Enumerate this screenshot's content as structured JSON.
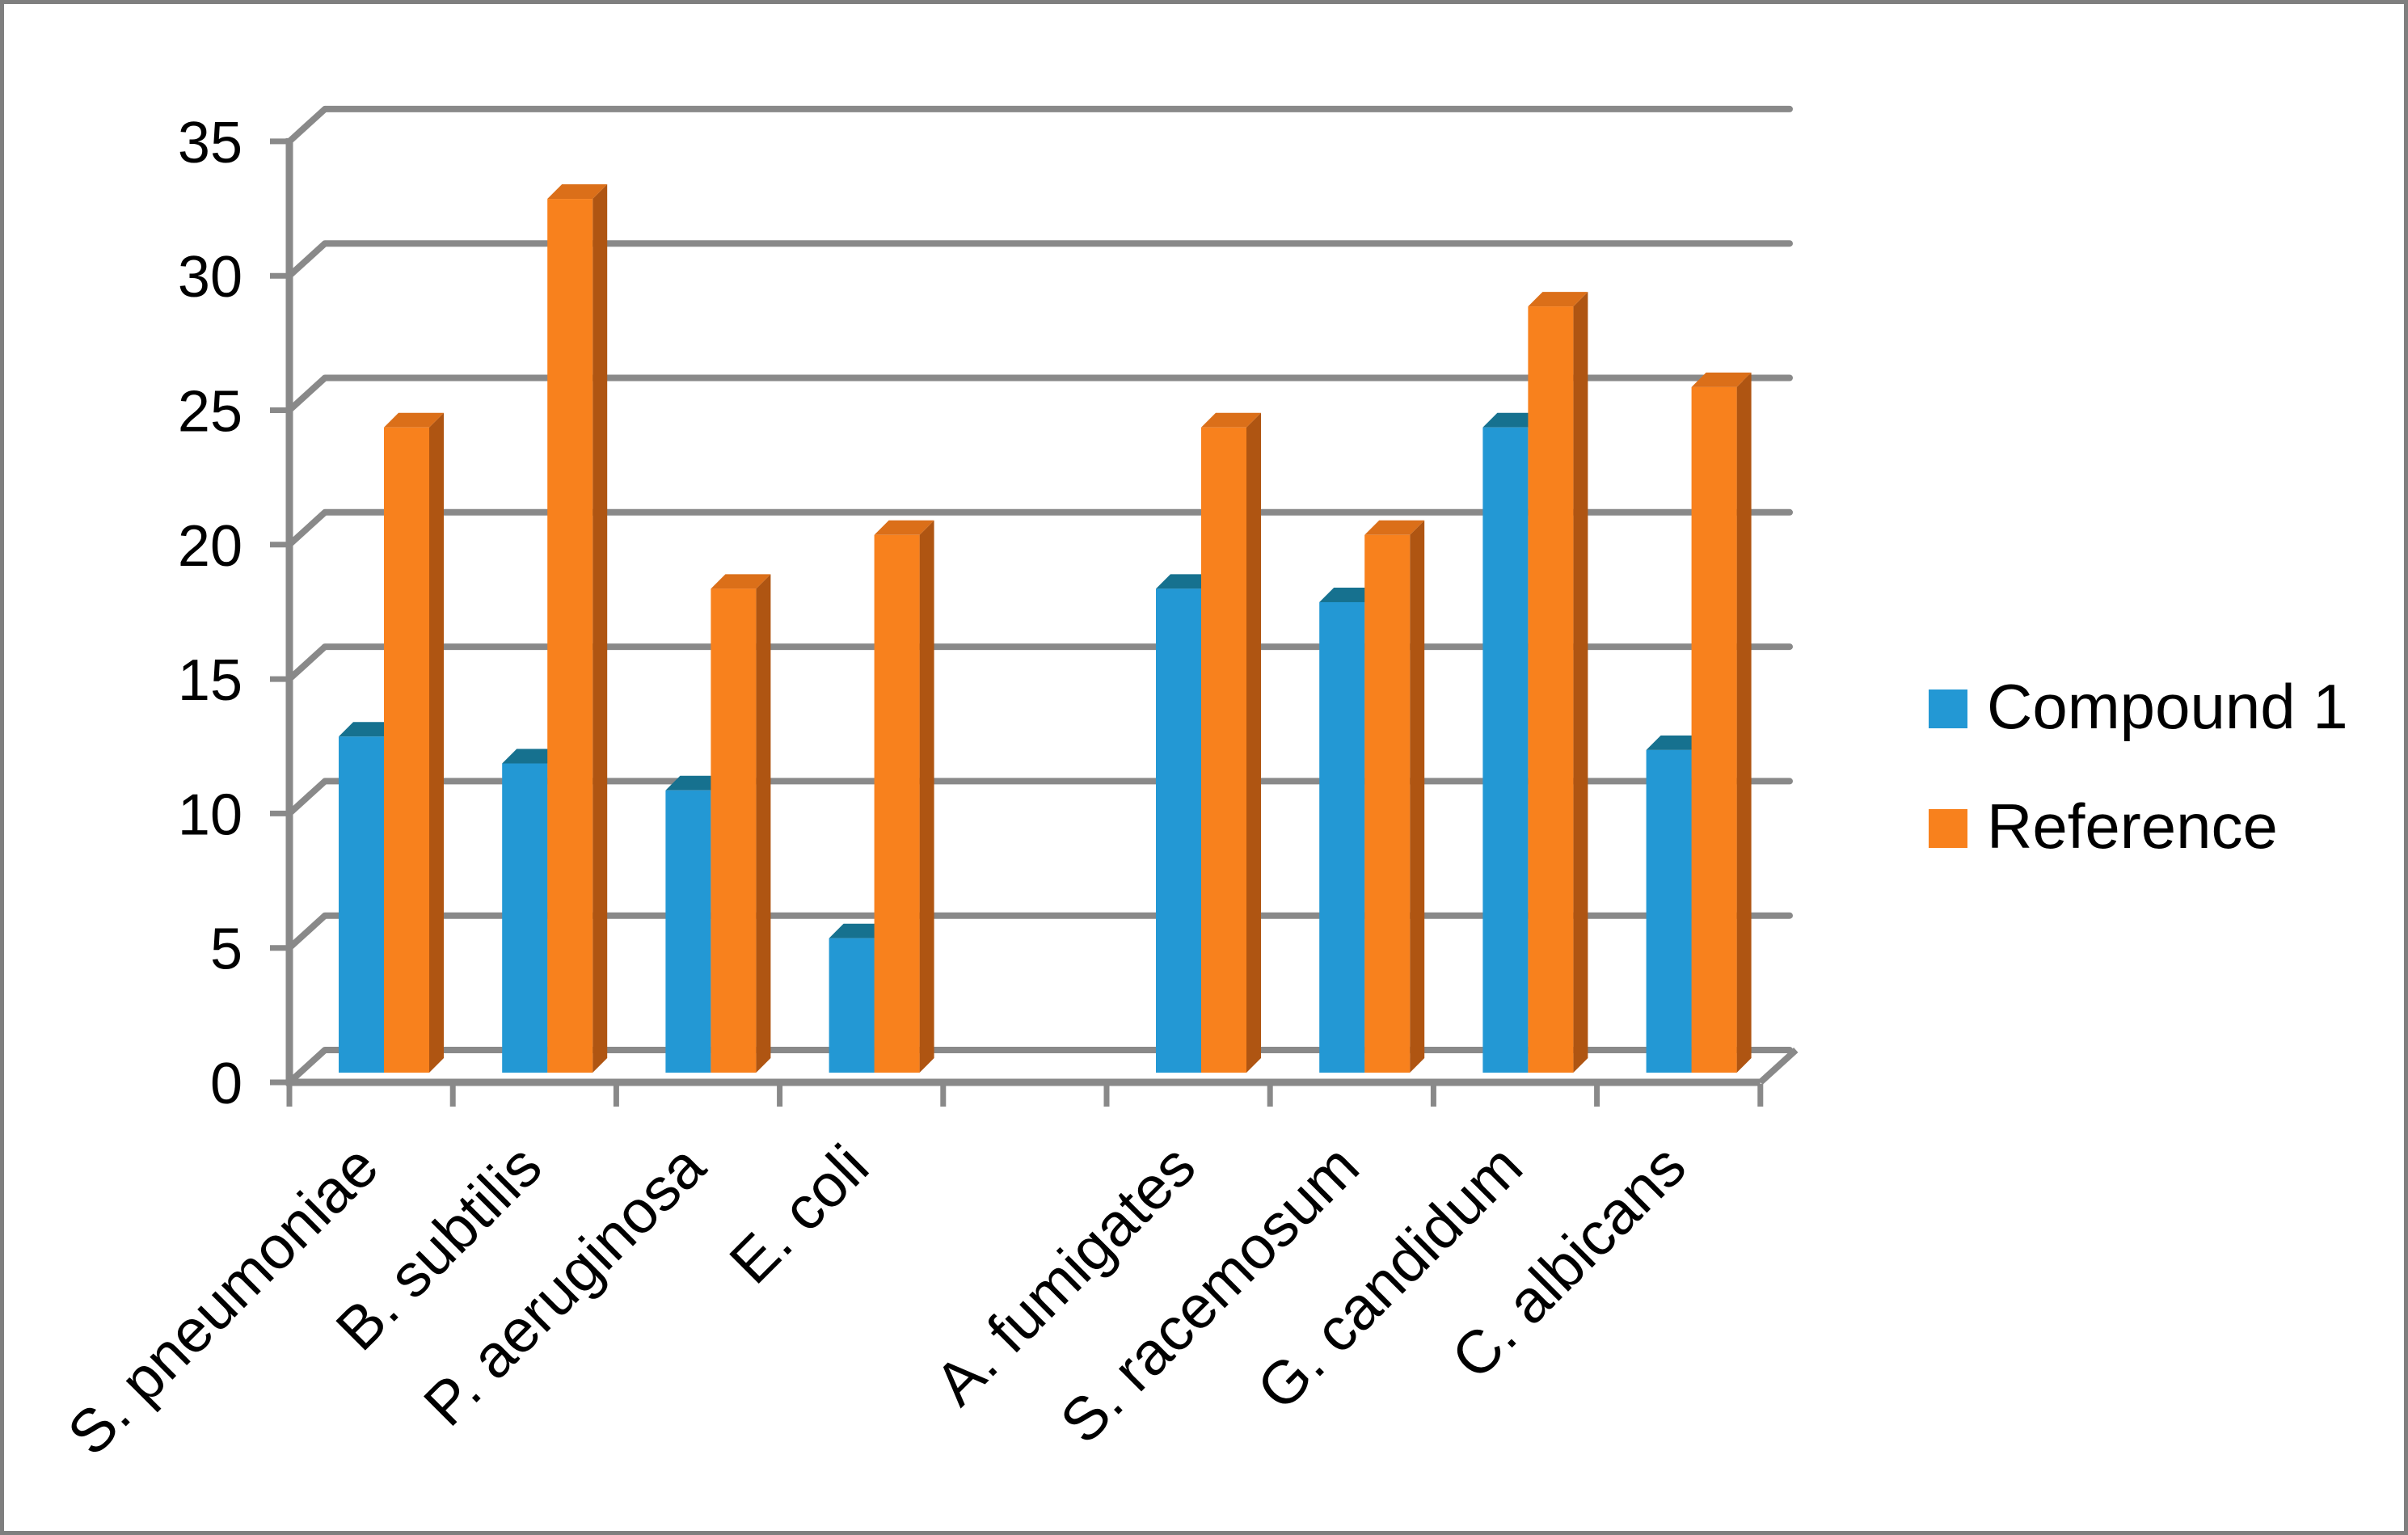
{
  "chart_data": {
    "type": "bar",
    "projection": "3d-oblique",
    "title": "",
    "xlabel": "",
    "ylabel": "",
    "categories": [
      "S. pneumoniae",
      "B. subtilis",
      "P. aeruginosa",
      "E. coli",
      "",
      "A. fumigates",
      "S. racemosum",
      "G. candidum",
      "C. albicans"
    ],
    "series": [
      {
        "name": "Compound 1",
        "color": "#2398D4",
        "top_color": "#16718F",
        "side_color": "#1779A8",
        "values": [
          12.5,
          11.5,
          10.5,
          5,
          null,
          18,
          17.5,
          24,
          12
        ]
      },
      {
        "name": "Reference",
        "color": "#F8811D",
        "top_color": "#DB6F19",
        "side_color": "#AF5512",
        "values": [
          24,
          32.5,
          18,
          20,
          null,
          24,
          20,
          28.5,
          25.5
        ]
      }
    ],
    "ylim": [
      0,
      35
    ],
    "ytick_step": 5,
    "yticks": [
      "0",
      "5",
      "10",
      "15",
      "20",
      "25",
      "30",
      "35"
    ],
    "grid": true,
    "legend_position": "right",
    "axis_color": "#898989",
    "text_color": "#000000",
    "background": "#FFFFFF",
    "border_color": "#7F7F7F"
  }
}
